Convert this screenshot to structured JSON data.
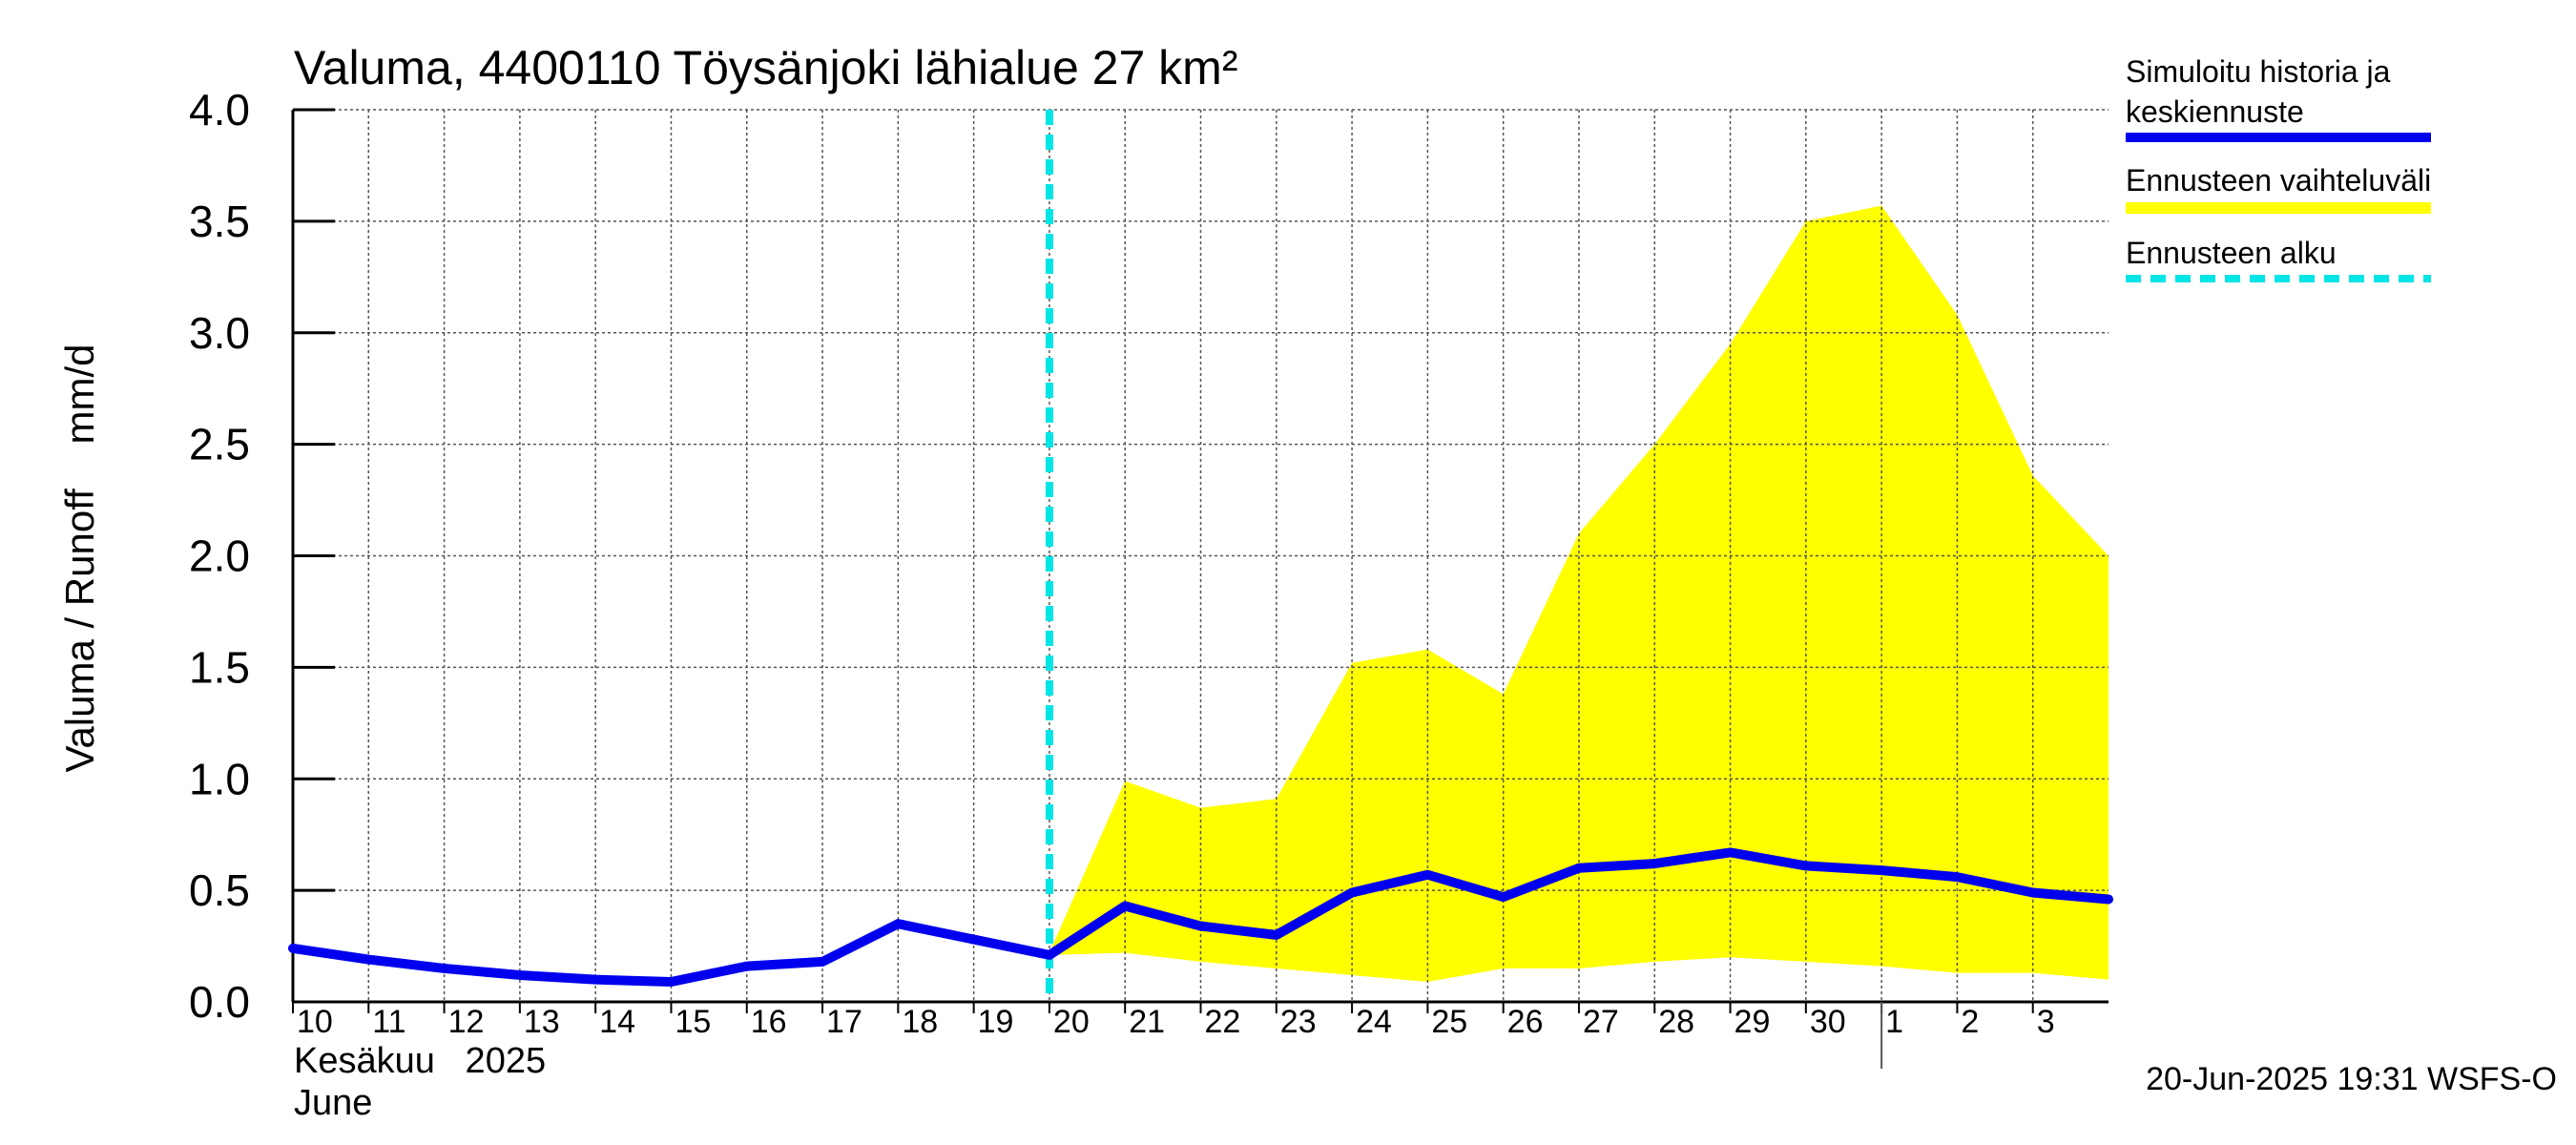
{
  "chart_data": {
    "type": "line",
    "title": "Valuma, 4400110 Töysänjoki lähialue 27 km²",
    "ylabel": "Valuma / Runoff    mm/d",
    "ylim": [
      0,
      4.0
    ],
    "yticks": [
      "0.0",
      "0.5",
      "1.0",
      "1.5",
      "2.0",
      "2.5",
      "3.0",
      "3.5",
      "4.0"
    ],
    "x_day_index_range": [
      0,
      24
    ],
    "x_tick_labels": [
      "10",
      "11",
      "12",
      "13",
      "14",
      "15",
      "16",
      "17",
      "18",
      "19",
      "20",
      "21",
      "22",
      "23",
      "24",
      "25",
      "26",
      "27",
      "28",
      "29",
      "30",
      "1",
      "2",
      "3"
    ],
    "month_labels": {
      "line1": "Kesäkuu   2025",
      "line2": "June"
    },
    "forecast_start_index": 10,
    "month_boundary_index": 21,
    "series": [
      {
        "name": "Simuloitu historia ja keskiennuste",
        "color": "#0000ee",
        "x": [
          0,
          1,
          2,
          3,
          4,
          5,
          6,
          7,
          8,
          9,
          10,
          11,
          12,
          13,
          14,
          15,
          16,
          17,
          18,
          19,
          20,
          21,
          22,
          23,
          24
        ],
        "values": [
          0.24,
          0.19,
          0.15,
          0.12,
          0.1,
          0.09,
          0.16,
          0.18,
          0.35,
          0.28,
          0.21,
          0.43,
          0.34,
          0.3,
          0.49,
          0.57,
          0.47,
          0.6,
          0.62,
          0.67,
          0.61,
          0.59,
          0.56,
          0.49,
          0.46
        ]
      }
    ],
    "band": {
      "name": "Ennusteen vaihteluväli",
      "color": "#ffff00",
      "x": [
        10,
        11,
        12,
        13,
        14,
        15,
        16,
        17,
        18,
        19,
        20,
        21,
        22,
        23,
        24
      ],
      "upper": [
        0.22,
        0.99,
        0.87,
        0.91,
        1.52,
        1.58,
        1.38,
        2.1,
        2.5,
        2.95,
        3.5,
        3.57,
        3.08,
        2.36,
        2.0
      ],
      "lower": [
        0.21,
        0.22,
        0.18,
        0.15,
        0.12,
        0.09,
        0.15,
        0.15,
        0.18,
        0.2,
        0.18,
        0.16,
        0.13,
        0.13,
        0.1
      ]
    },
    "legend": [
      {
        "label_line1": "Simuloitu historia ja",
        "label_line2": "keskiennuste",
        "style": "solid",
        "color": "#0000ee"
      },
      {
        "label_line1": "Ennusteen vaihteluväli",
        "label_line2": "",
        "style": "solid",
        "color": "#ffff00"
      },
      {
        "label_line1": "Ennusteen alku",
        "label_line2": "",
        "style": "dashed",
        "color": "#00e5e5"
      }
    ],
    "timestamp": "20-Jun-2025 19:31 WSFS-O"
  }
}
